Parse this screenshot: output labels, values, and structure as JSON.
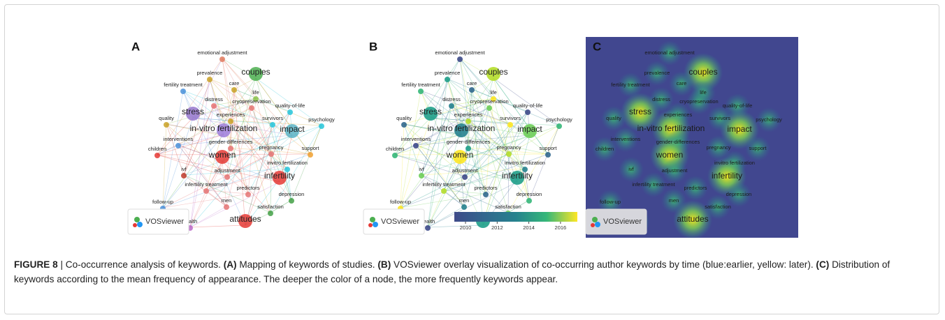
{
  "panels": [
    {
      "label": "A"
    },
    {
      "label": "B"
    },
    {
      "label": "C"
    }
  ],
  "keywords": [
    "emotional adjustment",
    "prevalence",
    "couples",
    "care",
    "fertility treatment",
    "life",
    "distress",
    "cryopreservation",
    "quality-of-life",
    "stress",
    "experiences",
    "quality",
    "psychology",
    "survivors",
    "in-vitro fertilization",
    "impact",
    "interventions",
    "gender-differences",
    "pregnancy",
    "support",
    "children",
    "women",
    "invitro fertilization",
    "ivf",
    "adjustment",
    "infertility",
    "infertility treatment",
    "predictors",
    "depression",
    "follow-up",
    "men",
    "satisfaction",
    "health",
    "attitudes"
  ],
  "brand": "VOSviewer",
  "colorbar_ticks": [
    "2010",
    "2012",
    "2014",
    "2016"
  ],
  "caption": {
    "figure": "FIGURE 8",
    "lead": "| Co-occurrence analysis of keywords.",
    "parts": [
      {
        "label": "(A)",
        "text": "Mapping of keywords of studies."
      },
      {
        "label": "(B)",
        "text": "VOSviewer overlay visualization of co-occurring author keywords by time (blue:earlier, yellow: later)."
      },
      {
        "label": "(C)",
        "text": "Distribution of keywords according to the mean frequency of appearance. The deeper the color of a node, the more frequently keywords appear."
      }
    ]
  }
}
